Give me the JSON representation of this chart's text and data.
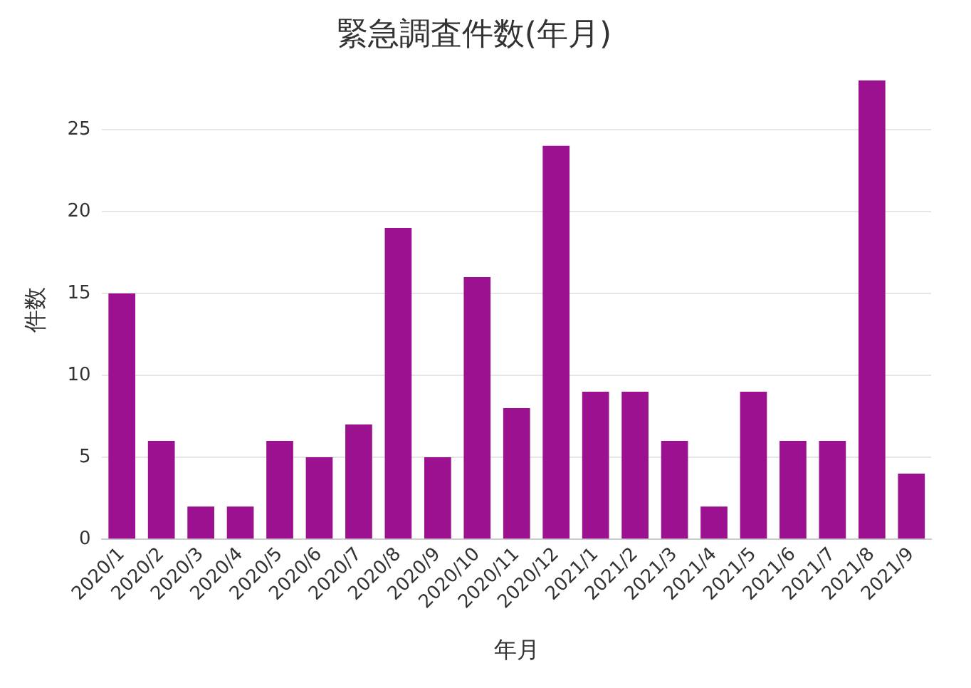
{
  "chart_data": {
    "type": "bar",
    "title": "緊急調査件数(年月)",
    "xlabel": "年月",
    "ylabel": "件数",
    "categories": [
      "2020/1",
      "2020/2",
      "2020/3",
      "2020/4",
      "2020/5",
      "2020/6",
      "2020/7",
      "2020/8",
      "2020/9",
      "2020/10",
      "2020/11",
      "2020/12",
      "2021/1",
      "2021/2",
      "2021/3",
      "2021/4",
      "2021/5",
      "2021/6",
      "2021/7",
      "2021/8",
      "2021/9"
    ],
    "values": [
      15,
      6,
      2,
      2,
      6,
      5,
      7,
      19,
      5,
      16,
      8,
      24,
      9,
      9,
      6,
      2,
      9,
      6,
      6,
      28,
      4
    ],
    "color": "#9c1190",
    "ylim": [
      0,
      28
    ],
    "yticks": [
      0,
      5,
      10,
      15,
      20,
      25
    ],
    "grid": "y",
    "legend": false
  }
}
